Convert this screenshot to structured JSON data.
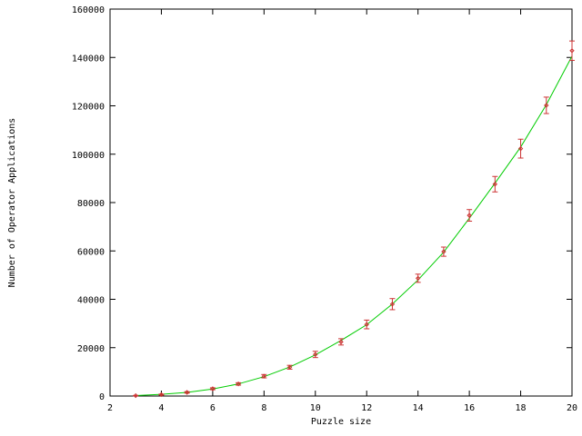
{
  "chart_data": {
    "type": "line",
    "xlabel": "Puzzle size",
    "ylabel": "Number of Operator Applications",
    "xlim": [
      2,
      20
    ],
    "ylim": [
      0,
      160000
    ],
    "x_ticks": [
      2,
      4,
      6,
      8,
      10,
      12,
      14,
      16,
      18,
      20
    ],
    "y_ticks": [
      0,
      20000,
      40000,
      60000,
      80000,
      100000,
      120000,
      140000,
      160000
    ],
    "grid": false,
    "colors": {
      "fit_line": "#00cc00",
      "points": "#cc3333",
      "axes": "#000000"
    },
    "points": [
      {
        "x": 3,
        "y": 150,
        "err": 100
      },
      {
        "x": 4,
        "y": 600,
        "err": 200
      },
      {
        "x": 5,
        "y": 1500,
        "err": 300
      },
      {
        "x": 6,
        "y": 3000,
        "err": 400
      },
      {
        "x": 7,
        "y": 5000,
        "err": 500
      },
      {
        "x": 8,
        "y": 8200,
        "err": 700
      },
      {
        "x": 9,
        "y": 11900,
        "err": 800
      },
      {
        "x": 10,
        "y": 17200,
        "err": 1300
      },
      {
        "x": 11,
        "y": 22400,
        "err": 1300
      },
      {
        "x": 12,
        "y": 29600,
        "err": 1800
      },
      {
        "x": 13,
        "y": 38000,
        "err": 2300
      },
      {
        "x": 14,
        "y": 48700,
        "err": 1700
      },
      {
        "x": 15,
        "y": 59700,
        "err": 1900
      },
      {
        "x": 16,
        "y": 74700,
        "err": 2400
      },
      {
        "x": 17,
        "y": 87600,
        "err": 3200
      },
      {
        "x": 18,
        "y": 102300,
        "err": 3900
      },
      {
        "x": 19,
        "y": 120200,
        "err": 3400
      },
      {
        "x": 20,
        "y": 142800,
        "err": 4000
      }
    ],
    "fit_curve": [
      {
        "x": 3,
        "y": 200
      },
      {
        "x": 4,
        "y": 700
      },
      {
        "x": 5,
        "y": 1500
      },
      {
        "x": 6,
        "y": 2900
      },
      {
        "x": 7,
        "y": 5000
      },
      {
        "x": 8,
        "y": 8000
      },
      {
        "x": 9,
        "y": 12000
      },
      {
        "x": 10,
        "y": 17000
      },
      {
        "x": 11,
        "y": 23000
      },
      {
        "x": 12,
        "y": 29500
      },
      {
        "x": 13,
        "y": 38000
      },
      {
        "x": 14,
        "y": 48000
      },
      {
        "x": 15,
        "y": 59500
      },
      {
        "x": 16,
        "y": 73500
      },
      {
        "x": 17,
        "y": 88000
      },
      {
        "x": 18,
        "y": 103000
      },
      {
        "x": 19,
        "y": 120500
      },
      {
        "x": 20,
        "y": 140500
      }
    ]
  }
}
